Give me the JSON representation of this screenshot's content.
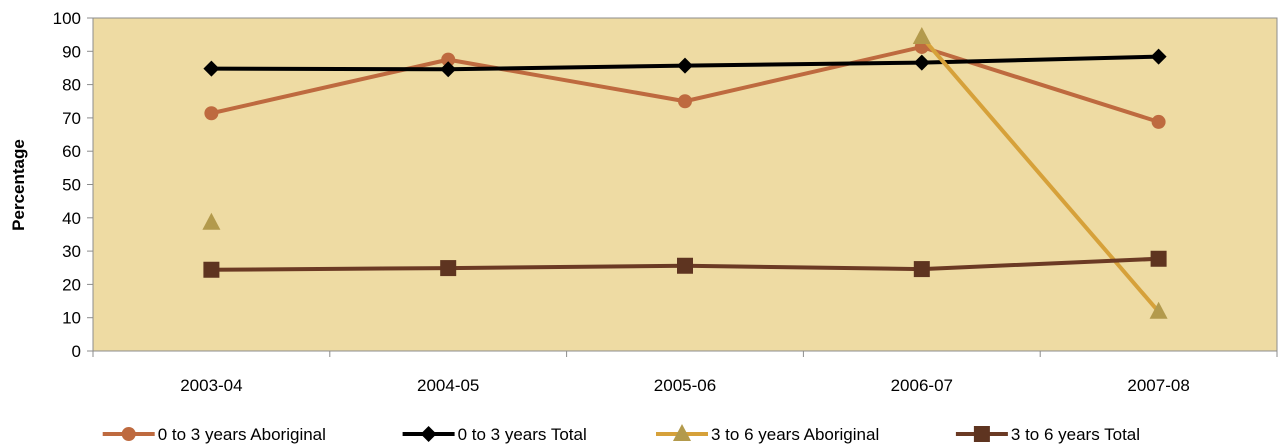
{
  "chart_data": {
    "type": "line",
    "title": "",
    "xlabel": "",
    "ylabel": "Percentage",
    "categories": [
      "2003-04",
      "2004-05",
      "2005-06",
      "2006-07",
      "2007-08"
    ],
    "ylim": [
      0,
      100
    ],
    "yticks": [
      0,
      10,
      20,
      30,
      40,
      50,
      60,
      70,
      80,
      90,
      100
    ],
    "grid": false,
    "plot_background": "#EEDBA3",
    "legend_position": "bottom",
    "series": [
      {
        "name": "0 to 3 years Aboriginal",
        "values": [
          71.4,
          87.5,
          75.0,
          91.3,
          68.8
        ],
        "color": "#BE6A3F",
        "marker": "circle"
      },
      {
        "name": "0 to 3 years Total",
        "values": [
          84.8,
          84.6,
          85.7,
          86.6,
          88.4
        ],
        "color": "#000000",
        "marker": "diamond"
      },
      {
        "name": "3 to 6 years Aboriginal",
        "values": [
          38.5,
          null,
          null,
          94.3,
          11.8
        ],
        "color": "#D6A13A",
        "marker": "triangle",
        "marker_color": "#B39A4C"
      },
      {
        "name": "3 to 6 years Total",
        "values": [
          24.4,
          24.9,
          25.6,
          24.6,
          27.7
        ],
        "color": "#6B3A24",
        "marker": "square",
        "marker_color": "#5E3420"
      }
    ]
  }
}
